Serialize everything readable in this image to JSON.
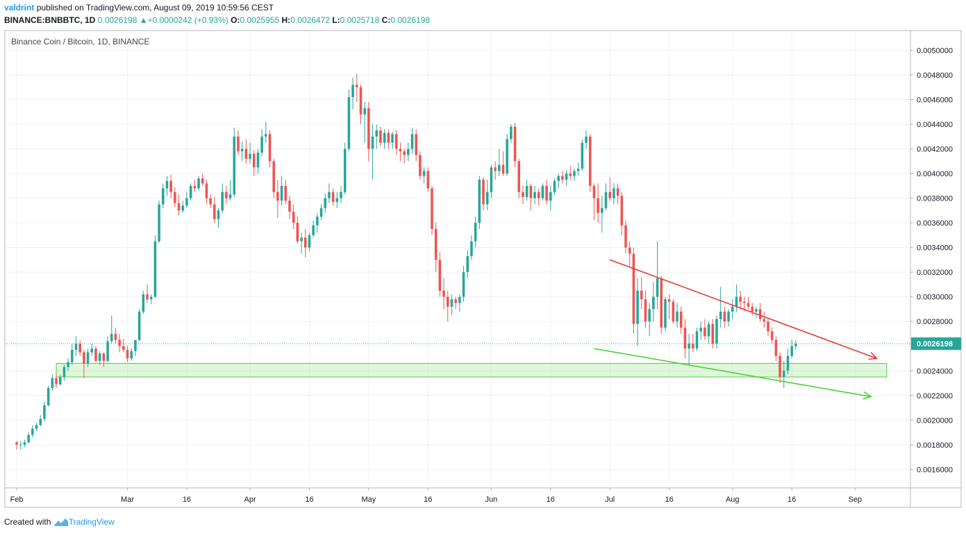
{
  "header": {
    "author": "valdrint",
    "published_text": "published on TradingView.com, August 09, 2019 10:59:56 CEST",
    "symbol": "BINANCE:BNBBTC, 1D",
    "last": "0.0026198",
    "change": "+0.0000242 (+0.93%)",
    "o_label": "O:",
    "o_value": "0.0025955",
    "h_label": "H:",
    "h_value": "0.0026472",
    "l_label": "L:",
    "l_value": "0.0025718",
    "c_label": "C:",
    "c_value": "0.0026198"
  },
  "footer": {
    "created_with": "Created with",
    "brand": "TradingView"
  },
  "chart_data": {
    "type": "candlestick",
    "title": "Binance Coin / Bitcoin, 1D, BINANCE",
    "y_range": [
      0.00145,
      0.00516
    ],
    "y_ticks": [
      "0.0016000",
      "0.0018000",
      "0.0020000",
      "0.0022000",
      "0.0024000",
      "0.0026000",
      "0.0028000",
      "0.0030000",
      "0.0032000",
      "0.0034000",
      "0.0036000",
      "0.0038000",
      "0.0040000",
      "0.0042000",
      "0.0044000",
      "0.0046000",
      "0.0048000",
      "0.0050000"
    ],
    "x_ticks": [
      {
        "label": "Feb",
        "day": 0
      },
      {
        "label": "Mar",
        "day": 28
      },
      {
        "label": "16",
        "day": 43
      },
      {
        "label": "Apr",
        "day": 59
      },
      {
        "label": "16",
        "day": 74
      },
      {
        "label": "May",
        "day": 89
      },
      {
        "label": "16",
        "day": 104
      },
      {
        "label": "Jun",
        "day": 120
      },
      {
        "label": "16",
        "day": 135
      },
      {
        "label": "Jul",
        "day": 150
      },
      {
        "label": "16",
        "day": 165
      },
      {
        "label": "Aug",
        "day": 181
      },
      {
        "label": "16",
        "day": 196
      },
      {
        "label": "Sep",
        "day": 212
      }
    ],
    "x_range_days": [
      -3,
      226
    ],
    "last_price": 0.0026198,
    "last_price_label": "0.0026198",
    "support_zone": {
      "from": 0.00235,
      "to": 0.00246,
      "start_day": 10,
      "end_day": 220
    },
    "trend_lines": [
      {
        "name": "resistance",
        "color": "#e53935",
        "points": [
          [
            150,
            0.0033
          ],
          [
            217.5,
            0.0025
          ]
        ]
      },
      {
        "name": "support",
        "color": "#4cd137",
        "points": [
          [
            146,
            0.00258
          ],
          [
            216,
            0.00219
          ]
        ]
      }
    ],
    "ohlc": [
      [
        0.00182,
        0.00183,
        0.00176,
        0.0018
      ],
      [
        0.0018,
        0.00183,
        0.00176,
        0.0018
      ],
      [
        0.0018,
        0.00184,
        0.00178,
        0.00182
      ],
      [
        0.00182,
        0.0019,
        0.00181,
        0.00188
      ],
      [
        0.00188,
        0.00196,
        0.00186,
        0.00193
      ],
      [
        0.00193,
        0.00198,
        0.00191,
        0.00196
      ],
      [
        0.00196,
        0.00204,
        0.00195,
        0.00201
      ],
      [
        0.00201,
        0.00215,
        0.00199,
        0.00212
      ],
      [
        0.00212,
        0.00228,
        0.00211,
        0.00226
      ],
      [
        0.00226,
        0.00237,
        0.00224,
        0.00234
      ],
      [
        0.00234,
        0.00238,
        0.00226,
        0.00229
      ],
      [
        0.00229,
        0.00237,
        0.00228,
        0.00235
      ],
      [
        0.00235,
        0.00245,
        0.00232,
        0.00243
      ],
      [
        0.00243,
        0.0025,
        0.0024,
        0.00247
      ],
      [
        0.00247,
        0.00262,
        0.00245,
        0.00257
      ],
      [
        0.00257,
        0.00268,
        0.00252,
        0.00262
      ],
      [
        0.00262,
        0.00265,
        0.00252,
        0.00255
      ],
      [
        0.00255,
        0.00257,
        0.00234,
        0.00246
      ],
      [
        0.00246,
        0.00258,
        0.00243,
        0.00255
      ],
      [
        0.00255,
        0.00262,
        0.00252,
        0.00258
      ],
      [
        0.00258,
        0.0026,
        0.00247,
        0.00248
      ],
      [
        0.00248,
        0.00256,
        0.00245,
        0.00254
      ],
      [
        0.00254,
        0.00255,
        0.00243,
        0.00248
      ],
      [
        0.00248,
        0.00268,
        0.00247,
        0.00264
      ],
      [
        0.00264,
        0.00285,
        0.00262,
        0.0027
      ],
      [
        0.0027,
        0.00275,
        0.00262,
        0.00265
      ],
      [
        0.00265,
        0.0027,
        0.00255,
        0.0026
      ],
      [
        0.0026,
        0.00266,
        0.00255,
        0.00257
      ],
      [
        0.00257,
        0.0026,
        0.00247,
        0.0025
      ],
      [
        0.0025,
        0.00258,
        0.00248,
        0.00256
      ],
      [
        0.00256,
        0.00265,
        0.00252,
        0.00265
      ],
      [
        0.00265,
        0.0029,
        0.00264,
        0.00288
      ],
      [
        0.00288,
        0.00305,
        0.00286,
        0.00302
      ],
      [
        0.00302,
        0.0031,
        0.00295,
        0.00298
      ],
      [
        0.00298,
        0.00302,
        0.00294,
        0.003
      ],
      [
        0.003,
        0.0035,
        0.00299,
        0.00345
      ],
      [
        0.00345,
        0.00378,
        0.00344,
        0.00375
      ],
      [
        0.00375,
        0.00392,
        0.00372,
        0.00388
      ],
      [
        0.00388,
        0.00398,
        0.00382,
        0.00394
      ],
      [
        0.00394,
        0.00399,
        0.0038,
        0.00385
      ],
      [
        0.00385,
        0.00389,
        0.00373,
        0.00376
      ],
      [
        0.00376,
        0.00383,
        0.00366,
        0.0037
      ],
      [
        0.0037,
        0.00378,
        0.00368,
        0.00374
      ],
      [
        0.00374,
        0.00385,
        0.00372,
        0.0038
      ],
      [
        0.0038,
        0.00392,
        0.00378,
        0.0039
      ],
      [
        0.0039,
        0.00395,
        0.00385,
        0.00388
      ],
      [
        0.00388,
        0.00398,
        0.00386,
        0.00396
      ],
      [
        0.00396,
        0.004,
        0.0039,
        0.00392
      ],
      [
        0.00392,
        0.00395,
        0.00375,
        0.0038
      ],
      [
        0.0038,
        0.00383,
        0.00372,
        0.00375
      ],
      [
        0.00375,
        0.00381,
        0.0036,
        0.00363
      ],
      [
        0.00363,
        0.00372,
        0.00356,
        0.0037
      ],
      [
        0.0037,
        0.00392,
        0.00368,
        0.00385
      ],
      [
        0.00385,
        0.0039,
        0.00375,
        0.0038
      ],
      [
        0.0038,
        0.00395,
        0.00378,
        0.00383
      ],
      [
        0.00383,
        0.00437,
        0.00381,
        0.0043
      ],
      [
        0.0043,
        0.00435,
        0.00415,
        0.00418
      ],
      [
        0.00418,
        0.00426,
        0.0041,
        0.0042
      ],
      [
        0.0042,
        0.00428,
        0.00408,
        0.00412
      ],
      [
        0.00412,
        0.00425,
        0.00408,
        0.00416
      ],
      [
        0.00416,
        0.00419,
        0.00398,
        0.00405
      ],
      [
        0.00405,
        0.0042,
        0.004,
        0.00417
      ],
      [
        0.00417,
        0.00436,
        0.00414,
        0.0043
      ],
      [
        0.0043,
        0.00442,
        0.00425,
        0.00432
      ],
      [
        0.00432,
        0.00435,
        0.00405,
        0.0041
      ],
      [
        0.0041,
        0.00412,
        0.0038,
        0.00385
      ],
      [
        0.00385,
        0.00395,
        0.00364,
        0.00378
      ],
      [
        0.00378,
        0.00398,
        0.00374,
        0.0039
      ],
      [
        0.0039,
        0.00395,
        0.00375,
        0.00378
      ],
      [
        0.00378,
        0.00382,
        0.00363,
        0.00369
      ],
      [
        0.00369,
        0.00375,
        0.00355,
        0.0036
      ],
      [
        0.0036,
        0.00365,
        0.00343,
        0.00345
      ],
      [
        0.00345,
        0.00352,
        0.00335,
        0.00348
      ],
      [
        0.00348,
        0.00355,
        0.00332,
        0.0034
      ],
      [
        0.0034,
        0.00352,
        0.00337,
        0.0035
      ],
      [
        0.0035,
        0.00362,
        0.00348,
        0.00358
      ],
      [
        0.00358,
        0.00368,
        0.00352,
        0.00365
      ],
      [
        0.00365,
        0.00375,
        0.00362,
        0.00372
      ],
      [
        0.00372,
        0.00384,
        0.00368,
        0.0038
      ],
      [
        0.0038,
        0.00392,
        0.00376,
        0.00385
      ],
      [
        0.00385,
        0.00388,
        0.00374,
        0.00377
      ],
      [
        0.00377,
        0.00385,
        0.00372,
        0.0038
      ],
      [
        0.0038,
        0.0039,
        0.00376,
        0.00385
      ],
      [
        0.00385,
        0.00425,
        0.00383,
        0.0042
      ],
      [
        0.0042,
        0.00468,
        0.00418,
        0.00462
      ],
      [
        0.00462,
        0.00478,
        0.00452,
        0.00472
      ],
      [
        0.00472,
        0.00481,
        0.00458,
        0.0047
      ],
      [
        0.0047,
        0.00472,
        0.0044,
        0.00448
      ],
      [
        0.00448,
        0.00458,
        0.00425,
        0.00453
      ],
      [
        0.00453,
        0.00458,
        0.0041,
        0.0042
      ],
      [
        0.0042,
        0.0044,
        0.00395,
        0.0043
      ],
      [
        0.0043,
        0.0044,
        0.0042,
        0.00435
      ],
      [
        0.00435,
        0.00438,
        0.00422,
        0.00425
      ],
      [
        0.00425,
        0.00436,
        0.0042,
        0.00433
      ],
      [
        0.00433,
        0.00436,
        0.0042,
        0.00425
      ],
      [
        0.00425,
        0.00434,
        0.0042,
        0.00432
      ],
      [
        0.00432,
        0.00435,
        0.00415,
        0.0042
      ],
      [
        0.0042,
        0.00425,
        0.0041,
        0.00418
      ],
      [
        0.00418,
        0.0042,
        0.00408,
        0.00415
      ],
      [
        0.00415,
        0.00425,
        0.0041,
        0.0042
      ],
      [
        0.0042,
        0.00437,
        0.00416,
        0.00432
      ],
      [
        0.00432,
        0.00436,
        0.0041,
        0.00415
      ],
      [
        0.00415,
        0.00418,
        0.00395,
        0.00398
      ],
      [
        0.00398,
        0.00405,
        0.00392,
        0.00402
      ],
      [
        0.00402,
        0.00405,
        0.00385,
        0.00388
      ],
      [
        0.00388,
        0.0039,
        0.0035,
        0.00355
      ],
      [
        0.00355,
        0.0036,
        0.0032,
        0.0033
      ],
      [
        0.0033,
        0.00336,
        0.003,
        0.00305
      ],
      [
        0.00305,
        0.00315,
        0.0029,
        0.003
      ],
      [
        0.003,
        0.00305,
        0.0028,
        0.00292
      ],
      [
        0.00292,
        0.00302,
        0.00285,
        0.00298
      ],
      [
        0.00298,
        0.003,
        0.0029,
        0.00295
      ],
      [
        0.00295,
        0.00302,
        0.00288,
        0.003
      ],
      [
        0.003,
        0.00325,
        0.00296,
        0.0032
      ],
      [
        0.0032,
        0.00338,
        0.00315,
        0.00333
      ],
      [
        0.00333,
        0.0035,
        0.0033,
        0.00345
      ],
      [
        0.00345,
        0.00365,
        0.0034,
        0.0036
      ],
      [
        0.0036,
        0.00398,
        0.00355,
        0.00395
      ],
      [
        0.00395,
        0.00397,
        0.0037,
        0.00375
      ],
      [
        0.00375,
        0.00395,
        0.0037,
        0.00385
      ],
      [
        0.00385,
        0.00407,
        0.0038,
        0.00405
      ],
      [
        0.00405,
        0.0041,
        0.00395,
        0.00402
      ],
      [
        0.00402,
        0.0042,
        0.00398,
        0.00407
      ],
      [
        0.00407,
        0.00418,
        0.00398,
        0.004
      ],
      [
        0.004,
        0.00432,
        0.00398,
        0.00428
      ],
      [
        0.00428,
        0.0044,
        0.00425,
        0.00438
      ],
      [
        0.00438,
        0.00441,
        0.00405,
        0.0041
      ],
      [
        0.0041,
        0.00412,
        0.0038,
        0.00385
      ],
      [
        0.00385,
        0.0039,
        0.00375,
        0.00381
      ],
      [
        0.00381,
        0.00395,
        0.00378,
        0.0039
      ],
      [
        0.0039,
        0.00392,
        0.0037,
        0.0038
      ],
      [
        0.0038,
        0.0039,
        0.00375,
        0.00385
      ],
      [
        0.00385,
        0.00388,
        0.00374,
        0.0038
      ],
      [
        0.0038,
        0.00392,
        0.00378,
        0.0039
      ],
      [
        0.0039,
        0.00395,
        0.00375,
        0.00378
      ],
      [
        0.00378,
        0.0039,
        0.0037,
        0.00385
      ],
      [
        0.00385,
        0.00396,
        0.00383,
        0.00394
      ],
      [
        0.00394,
        0.004,
        0.00388,
        0.00398
      ],
      [
        0.00398,
        0.00402,
        0.00392,
        0.00395
      ],
      [
        0.00395,
        0.00403,
        0.0039,
        0.004
      ],
      [
        0.004,
        0.00406,
        0.00395,
        0.00398
      ],
      [
        0.00398,
        0.00404,
        0.00394,
        0.00402
      ],
      [
        0.00402,
        0.00409,
        0.00398,
        0.00404
      ],
      [
        0.00404,
        0.00428,
        0.00402,
        0.00425
      ],
      [
        0.00425,
        0.00435,
        0.0042,
        0.0043
      ],
      [
        0.0043,
        0.00432,
        0.00385,
        0.0039
      ],
      [
        0.0039,
        0.00392,
        0.00362,
        0.0038
      ],
      [
        0.0038,
        0.00392,
        0.0036,
        0.00368
      ],
      [
        0.00368,
        0.00382,
        0.00352,
        0.00372
      ],
      [
        0.00372,
        0.00392,
        0.0037,
        0.00385
      ],
      [
        0.00385,
        0.00397,
        0.00378,
        0.0038
      ],
      [
        0.0038,
        0.00392,
        0.00375,
        0.00388
      ],
      [
        0.00388,
        0.00392,
        0.00375,
        0.00382
      ],
      [
        0.00382,
        0.00385,
        0.0035,
        0.00358
      ],
      [
        0.00358,
        0.00362,
        0.00335,
        0.0034
      ],
      [
        0.0034,
        0.00345,
        0.00325,
        0.00335
      ],
      [
        0.00335,
        0.0034,
        0.0027,
        0.00278
      ],
      [
        0.00278,
        0.00315,
        0.0026,
        0.00305
      ],
      [
        0.00305,
        0.00316,
        0.0029,
        0.00298
      ],
      [
        0.00298,
        0.00305,
        0.00275,
        0.0028
      ],
      [
        0.0028,
        0.00295,
        0.00268,
        0.0029
      ],
      [
        0.0029,
        0.00312,
        0.0028,
        0.003
      ],
      [
        0.003,
        0.00345,
        0.0029,
        0.00315
      ],
      [
        0.00315,
        0.00317,
        0.0027,
        0.00275
      ],
      [
        0.00275,
        0.003,
        0.00272,
        0.00298
      ],
      [
        0.00298,
        0.00302,
        0.00282,
        0.00296
      ],
      [
        0.00296,
        0.00298,
        0.00278,
        0.0028
      ],
      [
        0.0028,
        0.00295,
        0.00275,
        0.00288
      ],
      [
        0.00288,
        0.00292,
        0.0027,
        0.00275
      ],
      [
        0.00275,
        0.00282,
        0.0025,
        0.00258
      ],
      [
        0.00258,
        0.0027,
        0.00245,
        0.00262
      ],
      [
        0.00262,
        0.0027,
        0.00255,
        0.00258
      ],
      [
        0.00258,
        0.00275,
        0.00256,
        0.00272
      ],
      [
        0.00272,
        0.0028,
        0.00265,
        0.00275
      ],
      [
        0.00275,
        0.00282,
        0.00265,
        0.00268
      ],
      [
        0.00268,
        0.0028,
        0.00262,
        0.00278
      ],
      [
        0.00278,
        0.00282,
        0.00258,
        0.00262
      ],
      [
        0.00262,
        0.00285,
        0.00258,
        0.00282
      ],
      [
        0.00282,
        0.00308,
        0.00275,
        0.00288
      ],
      [
        0.00288,
        0.00292,
        0.00275,
        0.0028
      ],
      [
        0.0028,
        0.0029,
        0.00276,
        0.00288
      ],
      [
        0.00288,
        0.00298,
        0.00282,
        0.00292
      ],
      [
        0.00292,
        0.0031,
        0.00288,
        0.003
      ],
      [
        0.003,
        0.00305,
        0.0029,
        0.00296
      ],
      [
        0.00296,
        0.003,
        0.00288,
        0.00295
      ],
      [
        0.00295,
        0.003,
        0.0029,
        0.00292
      ],
      [
        0.00292,
        0.00295,
        0.00285,
        0.00288
      ],
      [
        0.00288,
        0.00292,
        0.00283,
        0.0029
      ],
      [
        0.0029,
        0.00295,
        0.0028,
        0.00282
      ],
      [
        0.00282,
        0.00288,
        0.00275,
        0.0028
      ],
      [
        0.0028,
        0.00282,
        0.00268,
        0.00272
      ],
      [
        0.00272,
        0.00275,
        0.00262,
        0.00265
      ],
      [
        0.00265,
        0.00268,
        0.00248,
        0.00252
      ],
      [
        0.00252,
        0.00255,
        0.0023,
        0.00235
      ],
      [
        0.00235,
        0.00248,
        0.00226,
        0.0024
      ],
      [
        0.0024,
        0.00258,
        0.00237,
        0.00252
      ],
      [
        0.00252,
        0.00265,
        0.0025,
        0.0026
      ],
      [
        0.0026,
        0.00265,
        0.00257,
        0.00262
      ]
    ]
  }
}
